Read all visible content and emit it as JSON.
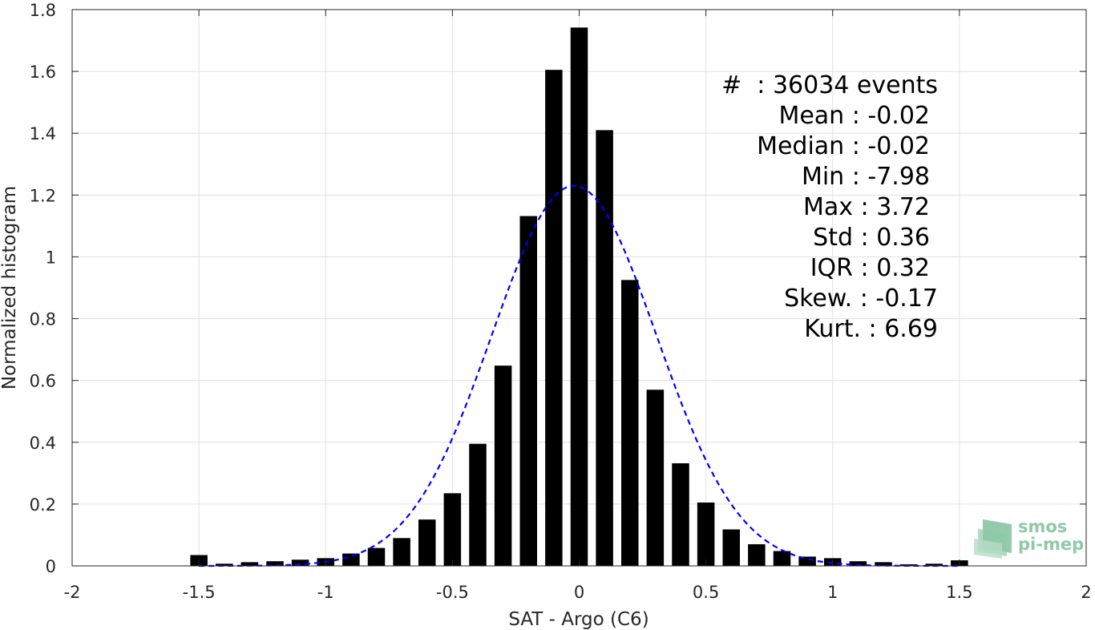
{
  "chart_data": {
    "type": "bar",
    "xlabel": "SAT - Argo (C6)",
    "ylabel": "Normalized histogram",
    "xlim": [
      -2,
      2
    ],
    "ylim": [
      0,
      1.8
    ],
    "xticks": [
      -2,
      -1.5,
      -1,
      -0.5,
      0,
      0.5,
      1,
      1.5,
      2
    ],
    "xtick_labels": [
      "-2",
      "-1.5",
      "-1",
      "-0.5",
      "0",
      "0.5",
      "1",
      "1.5",
      "2"
    ],
    "yticks": [
      0,
      0.2,
      0.4,
      0.6,
      0.8,
      1,
      1.2,
      1.4,
      1.6,
      1.8
    ],
    "ytick_labels": [
      "0",
      "0.2",
      "0.4",
      "0.6",
      "0.8",
      "1",
      "1.2",
      "1.4",
      "1.6",
      "1.8"
    ],
    "grid": true,
    "bar_color": "#000000",
    "bins": [
      -1.5,
      -1.4,
      -1.3,
      -1.2,
      -1.1,
      -1.0,
      -0.9,
      -0.8,
      -0.7,
      -0.6,
      -0.5,
      -0.4,
      -0.3,
      -0.2,
      -0.1,
      0.0,
      0.1,
      0.2,
      0.3,
      0.4,
      0.5,
      0.6,
      0.7,
      0.8,
      0.9,
      1.0,
      1.1,
      1.2,
      1.3,
      1.4,
      1.5
    ],
    "values": [
      0.035,
      0.007,
      0.012,
      0.015,
      0.02,
      0.025,
      0.04,
      0.058,
      0.09,
      0.15,
      0.235,
      0.395,
      0.648,
      1.132,
      1.605,
      1.742,
      1.41,
      0.925,
      0.57,
      0.332,
      0.205,
      0.118,
      0.07,
      0.048,
      0.03,
      0.025,
      0.015,
      0.012,
      0.005,
      0.007,
      0.018
    ],
    "fit_curve": {
      "style": "dashed",
      "color": "#0000ff",
      "mean": -0.02,
      "std": 0.325,
      "peak": 1.23,
      "x_range": [
        -1.5,
        1.5
      ]
    },
    "annotations": [
      "#  : 36034 events",
      "Mean : -0.02",
      "Median : -0.02",
      "Min : -7.98",
      "Max : 3.72",
      "Std : 0.36",
      "IQR : 0.32",
      "Skew. : -0.17",
      "Kurt. : 6.69"
    ]
  },
  "logo": {
    "line1": "smos",
    "line2": "pi-mep",
    "color": "#8fc9a6"
  }
}
